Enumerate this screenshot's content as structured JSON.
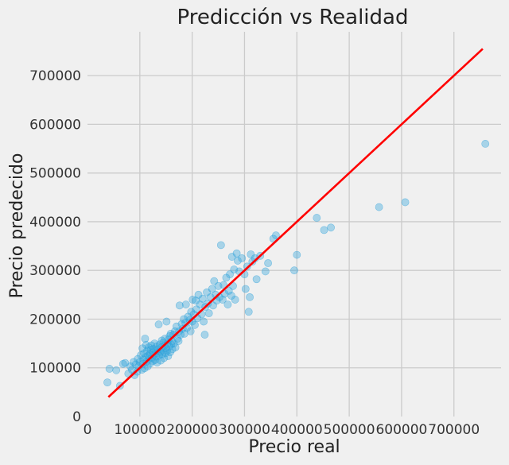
{
  "chart_data": {
    "type": "scatter",
    "title": "Predicción vs Realidad",
    "xlabel": "Precio real",
    "ylabel": "Precio predecido",
    "xlim": [
      0,
      790000
    ],
    "ylim": [
      0,
      790000
    ],
    "xticks": [
      100000,
      200000,
      300000,
      400000,
      500000,
      600000,
      700000
    ],
    "yticks": [
      100000,
      200000,
      300000,
      400000,
      500000,
      600000,
      700000
    ],
    "xtick_labels": [
      "100000",
      "200000",
      "300000",
      "400000",
      "500000",
      "600000",
      "700000"
    ],
    "ytick_labels": [
      "100000",
      "200000",
      "300000",
      "400000",
      "500000",
      "600000",
      "700000"
    ],
    "origin_x_label": "0",
    "origin_y_label": "0",
    "grid": true,
    "point_color": "#30a2da",
    "line_color": "#ff0000",
    "reference_line": {
      "x": [
        40000,
        755000
      ],
      "y": [
        40000,
        755000
      ]
    },
    "points": [
      [
        38000,
        70000
      ],
      [
        42000,
        98000
      ],
      [
        55000,
        95000
      ],
      [
        62000,
        63000
      ],
      [
        68000,
        108000
      ],
      [
        72000,
        110000
      ],
      [
        78000,
        88000
      ],
      [
        82000,
        103000
      ],
      [
        85000,
        96000
      ],
      [
        88000,
        112000
      ],
      [
        90000,
        85000
      ],
      [
        92000,
        107000
      ],
      [
        95000,
        92000
      ],
      [
        96000,
        118000
      ],
      [
        98000,
        103000
      ],
      [
        100000,
        112000
      ],
      [
        102000,
        126000
      ],
      [
        104000,
        96000
      ],
      [
        105000,
        140000
      ],
      [
        106000,
        108000
      ],
      [
        107000,
        117000
      ],
      [
        108000,
        130000
      ],
      [
        109000,
        99000
      ],
      [
        110000,
        160000
      ],
      [
        111000,
        122000
      ],
      [
        112000,
        147000
      ],
      [
        113000,
        113000
      ],
      [
        114000,
        135000
      ],
      [
        115000,
        103000
      ],
      [
        116000,
        125000
      ],
      [
        117000,
        142000
      ],
      [
        118000,
        118000
      ],
      [
        119000,
        128000
      ],
      [
        120000,
        109000
      ],
      [
        121000,
        137000
      ],
      [
        122000,
        146000
      ],
      [
        123000,
        121000
      ],
      [
        124000,
        131000
      ],
      [
        125000,
        114000
      ],
      [
        126000,
        139000
      ],
      [
        127000,
        127000
      ],
      [
        128000,
        150000
      ],
      [
        129000,
        116000
      ],
      [
        130000,
        134000
      ],
      [
        131000,
        123000
      ],
      [
        132000,
        144000
      ],
      [
        133000,
        111000
      ],
      [
        134000,
        130000
      ],
      [
        135000,
        138000
      ],
      [
        136000,
        189000
      ],
      [
        137000,
        125000
      ],
      [
        138000,
        148000
      ],
      [
        139000,
        133000
      ],
      [
        140000,
        115000
      ],
      [
        141000,
        142000
      ],
      [
        142000,
        156000
      ],
      [
        143000,
        128000
      ],
      [
        144000,
        136000
      ],
      [
        145000,
        152000
      ],
      [
        146000,
        120000
      ],
      [
        147000,
        145000
      ],
      [
        148000,
        160000
      ],
      [
        149000,
        130000
      ],
      [
        150000,
        140000
      ],
      [
        151000,
        195000
      ],
      [
        152000,
        135000
      ],
      [
        153000,
        150000
      ],
      [
        154000,
        124000
      ],
      [
        155000,
        158000
      ],
      [
        156000,
        144000
      ],
      [
        157000,
        165000
      ],
      [
        158000,
        132000
      ],
      [
        159000,
        170000
      ],
      [
        160000,
        148000
      ],
      [
        161000,
        155000
      ],
      [
        162000,
        138000
      ],
      [
        164000,
        168000
      ],
      [
        165000,
        150000
      ],
      [
        167000,
        175000
      ],
      [
        168000,
        142000
      ],
      [
        170000,
        185000
      ],
      [
        172000,
        160000
      ],
      [
        174000,
        155000
      ],
      [
        175000,
        175000
      ],
      [
        176000,
        228000
      ],
      [
        178000,
        168000
      ],
      [
        180000,
        190000
      ],
      [
        182000,
        180000
      ],
      [
        184000,
        200000
      ],
      [
        185000,
        170000
      ],
      [
        187000,
        192000
      ],
      [
        188000,
        230000
      ],
      [
        190000,
        182000
      ],
      [
        192000,
        205000
      ],
      [
        195000,
        198000
      ],
      [
        197000,
        175000
      ],
      [
        198000,
        215000
      ],
      [
        200000,
        195000
      ],
      [
        201000,
        240000
      ],
      [
        203000,
        210000
      ],
      [
        205000,
        188000
      ],
      [
        207000,
        238000
      ],
      [
        208000,
        220000
      ],
      [
        210000,
        202000
      ],
      [
        212000,
        250000
      ],
      [
        215000,
        230000
      ],
      [
        218000,
        210000
      ],
      [
        220000,
        242000
      ],
      [
        222000,
        195000
      ],
      [
        224000,
        168000
      ],
      [
        225000,
        225000
      ],
      [
        228000,
        255000
      ],
      [
        230000,
        232000
      ],
      [
        232000,
        212000
      ],
      [
        235000,
        245000
      ],
      [
        238000,
        262000
      ],
      [
        240000,
        228000
      ],
      [
        242000,
        278000
      ],
      [
        245000,
        250000
      ],
      [
        247000,
        238000
      ],
      [
        250000,
        268000
      ],
      [
        252000,
        245000
      ],
      [
        255000,
        352000
      ],
      [
        258000,
        240000
      ],
      [
        260000,
        270000
      ],
      [
        262000,
        252000
      ],
      [
        265000,
        285000
      ],
      [
        268000,
        230000
      ],
      [
        270000,
        258000
      ],
      [
        272000,
        292000
      ],
      [
        275000,
        248000
      ],
      [
        276000,
        328000
      ],
      [
        278000,
        268000
      ],
      [
        280000,
        302000
      ],
      [
        282000,
        240000
      ],
      [
        285000,
        335000
      ],
      [
        287000,
        320000
      ],
      [
        290000,
        298000
      ],
      [
        295000,
        325000
      ],
      [
        300000,
        292000
      ],
      [
        302000,
        262000
      ],
      [
        305000,
        308000
      ],
      [
        308000,
        215000
      ],
      [
        310000,
        245000
      ],
      [
        312000,
        333000
      ],
      [
        315000,
        318000
      ],
      [
        320000,
        325000
      ],
      [
        323000,
        282000
      ],
      [
        330000,
        330000
      ],
      [
        340000,
        298000
      ],
      [
        345000,
        315000
      ],
      [
        355000,
        365000
      ],
      [
        360000,
        372000
      ],
      [
        395000,
        300000
      ],
      [
        400000,
        332000
      ],
      [
        438000,
        408000
      ],
      [
        452000,
        383000
      ],
      [
        465000,
        388000
      ],
      [
        557000,
        430000
      ],
      [
        607000,
        440000
      ],
      [
        760000,
        560000
      ]
    ]
  }
}
